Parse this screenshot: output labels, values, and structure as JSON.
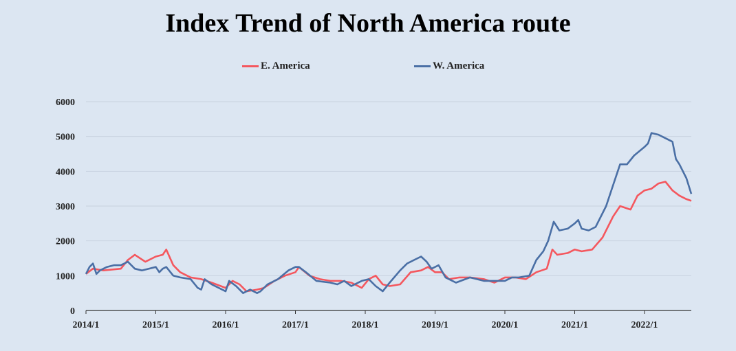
{
  "chart_data": {
    "type": "line",
    "title": "Index Trend of North America route",
    "ylim": [
      0,
      6000
    ],
    "yticks": [
      "0",
      "1000",
      "2000",
      "3000",
      "4000",
      "5000",
      "6000"
    ],
    "xticks": [
      "2014/1",
      "2015/1",
      "2016/1",
      "2017/1",
      "2018/1",
      "2019/1",
      "2020/1",
      "2021/1",
      "2022/1"
    ],
    "xlim": [
      2014.0,
      2022.67
    ],
    "grid": true,
    "legend_position": "top",
    "series": [
      {
        "name": "E. America",
        "color": "#f4575e",
        "x": [
          2014.0,
          2014.1,
          2014.25,
          2014.5,
          2014.6,
          2014.7,
          2014.85,
          2015.0,
          2015.1,
          2015.15,
          2015.25,
          2015.35,
          2015.5,
          2015.65,
          2015.8,
          2016.0,
          2016.1,
          2016.2,
          2016.3,
          2016.45,
          2016.55,
          2016.7,
          2016.85,
          2017.0,
          2017.05,
          2017.2,
          2017.35,
          2017.5,
          2017.65,
          2017.8,
          2017.95,
          2018.05,
          2018.15,
          2018.25,
          2018.35,
          2018.5,
          2018.65,
          2018.8,
          2018.9,
          2019.0,
          2019.1,
          2019.2,
          2019.35,
          2019.5,
          2019.7,
          2019.85,
          2020.0,
          2020.15,
          2020.3,
          2020.45,
          2020.6,
          2020.68,
          2020.75,
          2020.9,
          2021.0,
          2021.1,
          2021.25,
          2021.4,
          2021.55,
          2021.65,
          2021.8,
          2021.9,
          2022.0,
          2022.1,
          2022.2,
          2022.3,
          2022.4,
          2022.5,
          2022.6,
          2022.67
        ],
        "y": [
          1050,
          1200,
          1150,
          1200,
          1450,
          1600,
          1400,
          1550,
          1600,
          1750,
          1300,
          1100,
          950,
          900,
          800,
          650,
          850,
          750,
          550,
          600,
          650,
          850,
          1000,
          1100,
          1250,
          1000,
          900,
          850,
          850,
          800,
          650,
          900,
          1000,
          750,
          700,
          750,
          1100,
          1150,
          1250,
          1100,
          1100,
          900,
          950,
          950,
          900,
          800,
          950,
          950,
          900,
          1100,
          1200,
          1750,
          1600,
          1650,
          1750,
          1700,
          1750,
          2100,
          2700,
          3000,
          2900,
          3300,
          3450,
          3500,
          3650,
          3700,
          3450,
          3300,
          3200,
          3150
        ]
      },
      {
        "name": "W. America",
        "color": "#4a6fa5",
        "x": [
          2014.0,
          2014.05,
          2014.1,
          2014.15,
          2014.2,
          2014.3,
          2014.4,
          2014.5,
          2014.6,
          2014.7,
          2014.8,
          2014.9,
          2015.0,
          2015.05,
          2015.1,
          2015.15,
          2015.25,
          2015.35,
          2015.5,
          2015.6,
          2015.65,
          2015.7,
          2015.8,
          2016.0,
          2016.05,
          2016.15,
          2016.25,
          2016.35,
          2016.45,
          2016.5,
          2016.6,
          2016.75,
          2016.9,
          2017.0,
          2017.05,
          2017.15,
          2017.3,
          2017.5,
          2017.6,
          2017.7,
          2017.8,
          2017.95,
          2018.05,
          2018.15,
          2018.25,
          2018.35,
          2018.5,
          2018.6,
          2018.7,
          2018.8,
          2018.88,
          2018.95,
          2019.05,
          2019.15,
          2019.3,
          2019.5,
          2019.7,
          2019.85,
          2020.0,
          2020.1,
          2020.2,
          2020.35,
          2020.45,
          2020.55,
          2020.62,
          2020.7,
          2020.78,
          2020.9,
          2021.0,
          2021.05,
          2021.1,
          2021.2,
          2021.3,
          2021.45,
          2021.55,
          2021.65,
          2021.75,
          2021.85,
          2022.0,
          2022.05,
          2022.1,
          2022.2,
          2022.3,
          2022.4,
          2022.45,
          2022.5,
          2022.6,
          2022.67
        ],
        "y": [
          1050,
          1250,
          1350,
          1050,
          1150,
          1250,
          1300,
          1300,
          1400,
          1200,
          1150,
          1200,
          1250,
          1100,
          1200,
          1250,
          1000,
          950,
          900,
          650,
          600,
          900,
          750,
          550,
          850,
          700,
          500,
          600,
          500,
          550,
          750,
          900,
          1150,
          1250,
          1250,
          1100,
          850,
          800,
          750,
          850,
          700,
          850,
          900,
          700,
          550,
          800,
          1150,
          1350,
          1450,
          1550,
          1400,
          1200,
          1300,
          950,
          800,
          950,
          850,
          850,
          850,
          950,
          950,
          1000,
          1450,
          1700,
          2000,
          2550,
          2300,
          2350,
          2500,
          2600,
          2350,
          2300,
          2400,
          3000,
          3600,
          4200,
          4200,
          4450,
          4700,
          4800,
          5100,
          5050,
          4950,
          4850,
          4350,
          4200,
          3800,
          3350
        ]
      }
    ]
  }
}
